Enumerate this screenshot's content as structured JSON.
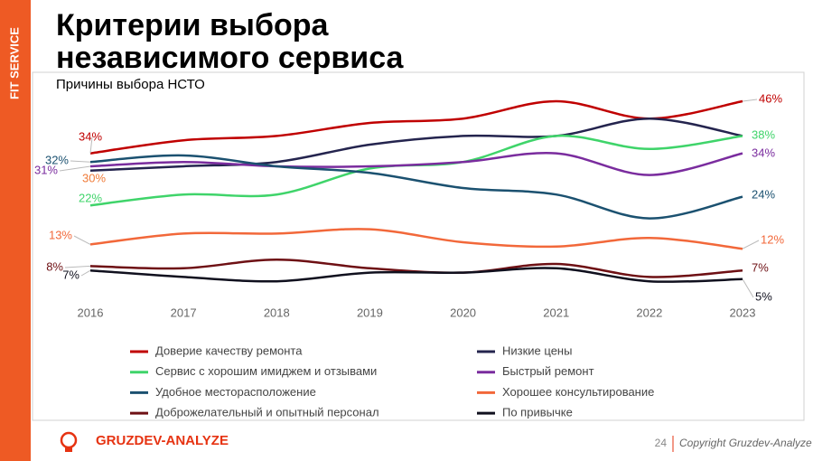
{
  "header": {
    "brand": "FIT SERVICE",
    "title_lines": [
      "Критерии выбора",
      "независимого сервиса"
    ]
  },
  "chart_data": {
    "type": "line",
    "title": "Причины выбора НСТО",
    "categories": [
      "2016",
      "2017",
      "2018",
      "2019",
      "2020",
      "2021",
      "2022",
      "2023"
    ],
    "series": [
      {
        "name": "Доверие качеству ремонта",
        "color": "#c00000",
        "values": [
          34,
          37,
          38,
          41,
          42,
          46,
          42,
          46
        ],
        "value_labels": [
          "34%",
          null,
          null,
          null,
          null,
          null,
          null,
          "46%"
        ]
      },
      {
        "name": "Низкие цены",
        "color": "#24244e",
        "label_color": "#f07c3a",
        "values": [
          30,
          31,
          32,
          36,
          38,
          38,
          42,
          38
        ],
        "value_labels": [
          "30%",
          null,
          null,
          null,
          null,
          null,
          null,
          null
        ]
      },
      {
        "name": "Сервис с хорошим имиджем и отзывами",
        "color": "#3fd46a",
        "values": [
          22,
          24.5,
          24.5,
          30.5,
          32,
          38,
          35,
          38
        ],
        "value_labels": [
          "22%",
          null,
          null,
          null,
          null,
          null,
          null,
          "38%"
        ]
      },
      {
        "name": "Быстрый ремонт",
        "color": "#7a2c9e",
        "values": [
          31,
          32,
          31,
          31,
          32,
          34,
          29,
          34
        ],
        "value_labels": [
          "31%",
          null,
          null,
          null,
          null,
          null,
          null,
          "34%"
        ]
      },
      {
        "name": "Удобное месторасположение",
        "color": "#1b5170",
        "values": [
          32,
          33.5,
          31,
          29.5,
          26,
          24.5,
          19,
          24
        ],
        "value_labels": [
          "32%",
          null,
          null,
          null,
          null,
          null,
          null,
          "24%"
        ]
      },
      {
        "name": "Хорошее консультирование",
        "color": "#f2683a",
        "values": [
          13,
          15.5,
          15.5,
          16.5,
          13.5,
          12.5,
          14.5,
          12
        ],
        "value_labels": [
          "13%",
          null,
          null,
          null,
          null,
          null,
          null,
          "12%"
        ]
      },
      {
        "name": "Доброжелательный и опытный персонал",
        "color": "#6e1014",
        "values": [
          8,
          7.5,
          9.5,
          7.5,
          6.5,
          8.5,
          5.5,
          7
        ],
        "value_labels": [
          "8%",
          null,
          null,
          null,
          null,
          null,
          null,
          "7%"
        ]
      },
      {
        "name": "По привычке",
        "color": "#10101e",
        "values": [
          7,
          5.5,
          4.5,
          6.5,
          6.5,
          7.5,
          4.5,
          5
        ],
        "value_labels": [
          "7%",
          null,
          null,
          null,
          null,
          null,
          null,
          "5%"
        ]
      }
    ]
  },
  "footer": {
    "logo": "GRUZDEV-ANALYZE",
    "page": 24,
    "copyright": "Copyright Gruzdev-Analyze"
  }
}
